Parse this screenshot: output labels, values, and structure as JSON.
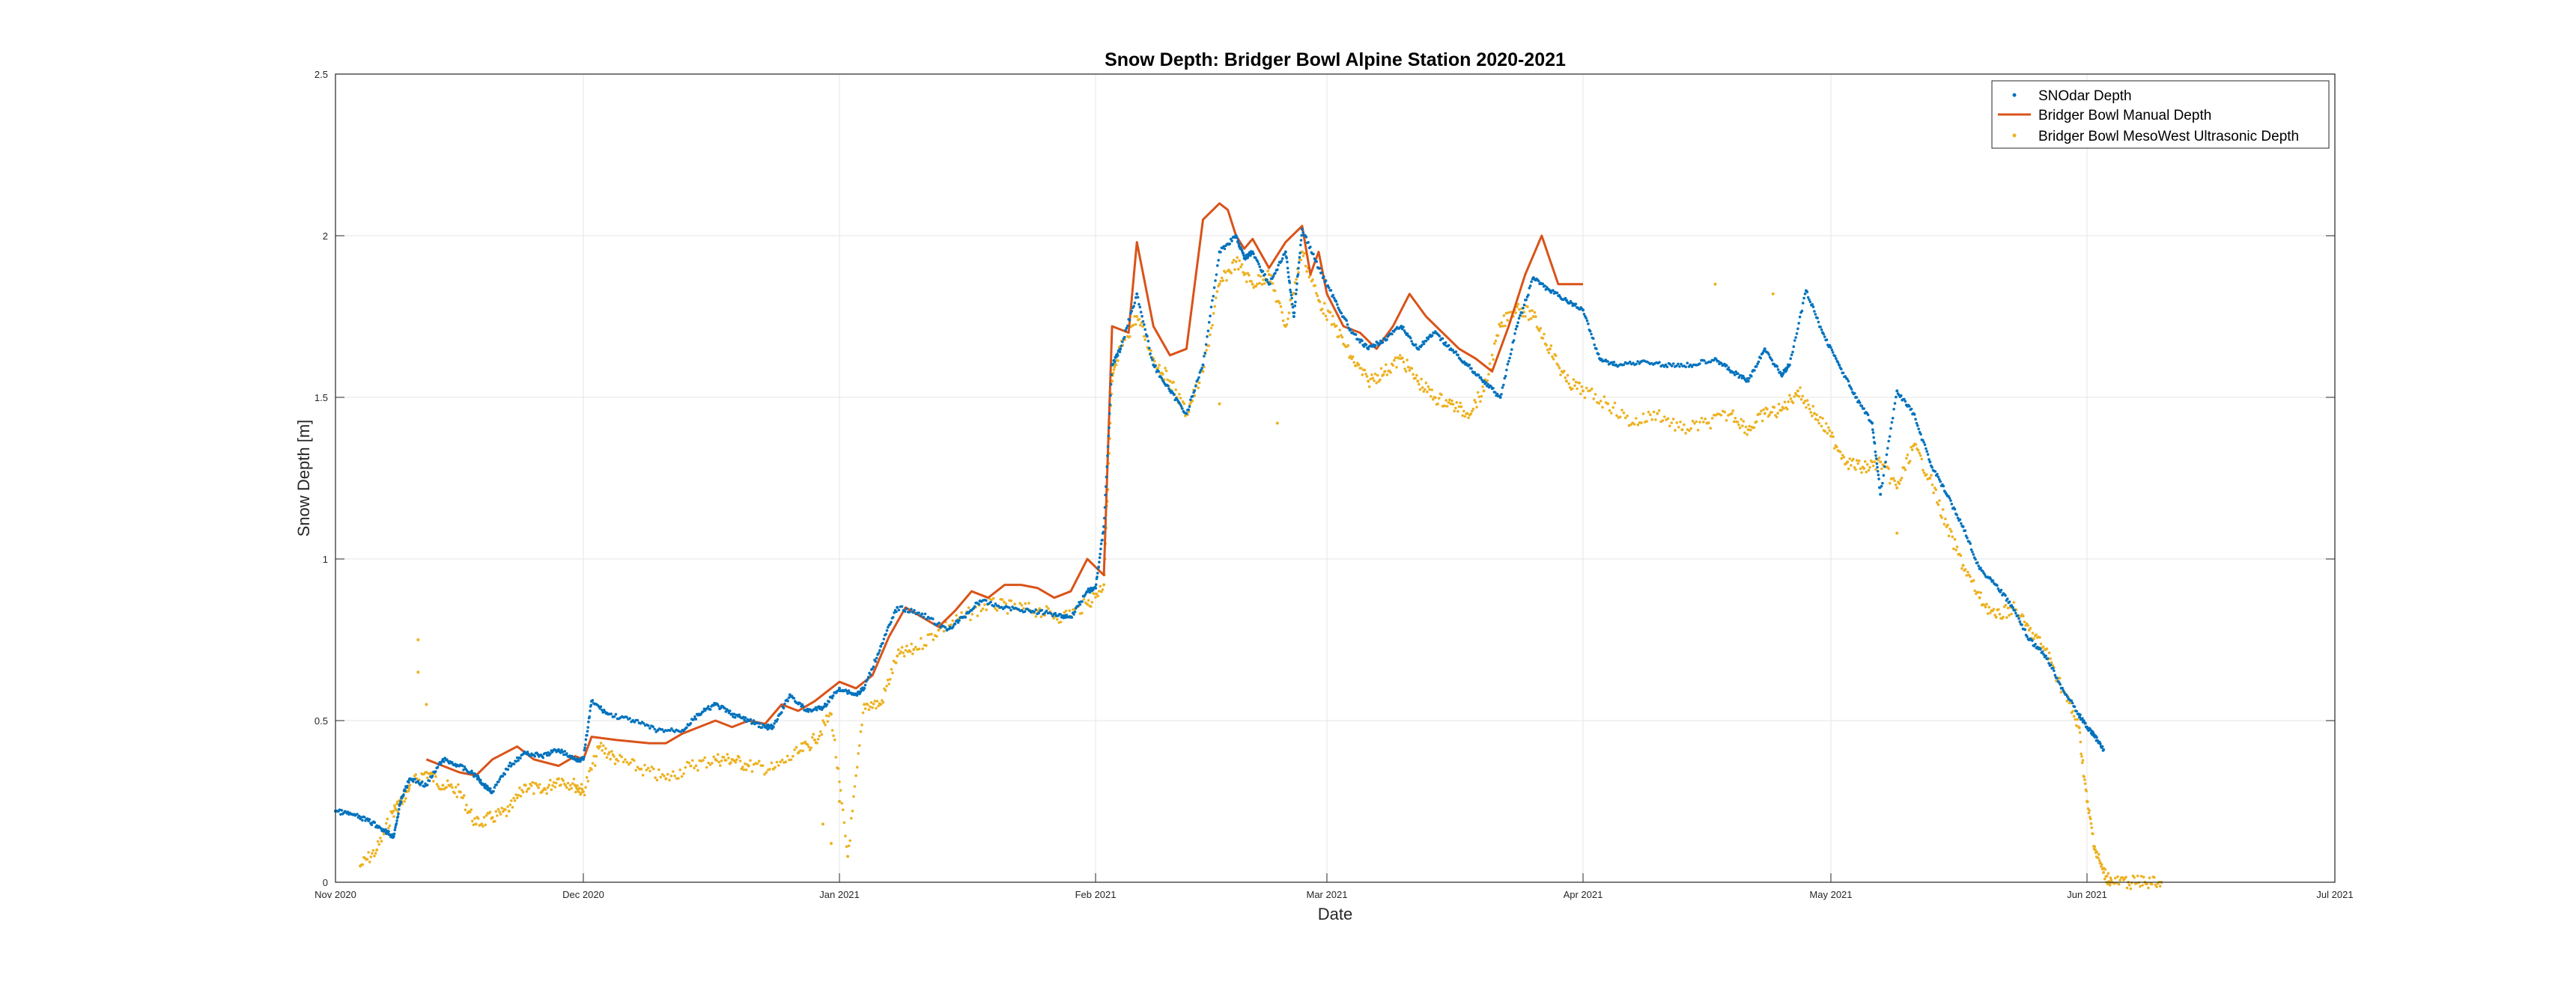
{
  "colors": {
    "snodar": "#0072bd",
    "manual": "#d95319",
    "mesowest": "#edb120",
    "grid": "#e6e6e6",
    "axis": "#262626"
  },
  "chart_data": {
    "type": "line",
    "title": "Snow Depth: Bridger Bowl Alpine Station 2020-2021",
    "xlabel": "Date",
    "ylabel": "Snow Depth [m]",
    "xlim": [
      "2020-11-01",
      "2021-07-01"
    ],
    "ylim": [
      0,
      2.5
    ],
    "grid": true,
    "legend_position": "top-right",
    "x_ticks": [
      {
        "date": "2020-11-01",
        "label": "Nov 2020"
      },
      {
        "date": "2020-12-01",
        "label": "Dec 2020"
      },
      {
        "date": "2021-01-01",
        "label": "Jan 2021"
      },
      {
        "date": "2021-02-01",
        "label": "Feb 2021"
      },
      {
        "date": "2021-03-01",
        "label": "Mar 2021"
      },
      {
        "date": "2021-04-01",
        "label": "Apr 2021"
      },
      {
        "date": "2021-05-01",
        "label": "May 2021"
      },
      {
        "date": "2021-06-01",
        "label": "Jun 2021"
      },
      {
        "date": "2021-07-01",
        "label": "Jul 2021"
      }
    ],
    "y_ticks": [
      0,
      0.5,
      1,
      1.5,
      2,
      2.5
    ],
    "y_tick_labels": [
      "0",
      "0.5",
      "1",
      "1.5",
      "2",
      "2.5"
    ],
    "series": [
      {
        "name": "SNOdar Depth",
        "style": "points",
        "color": "#0072bd",
        "x": [
          "2020-11-01",
          "2020-11-03",
          "2020-11-05",
          "2020-11-07",
          "2020-11-08",
          "2020-11-09",
          "2020-11-10",
          "2020-11-12",
          "2020-11-14",
          "2020-11-16",
          "2020-11-18",
          "2020-11-19",
          "2020-11-20",
          "2020-11-22",
          "2020-11-24",
          "2020-11-26",
          "2020-11-28",
          "2020-11-30",
          "2020-12-01",
          "2020-12-02",
          "2020-12-04",
          "2020-12-07",
          "2020-12-10",
          "2020-12-13",
          "2020-12-15",
          "2020-12-17",
          "2020-12-19",
          "2020-12-21",
          "2020-12-23",
          "2020-12-24",
          "2020-12-26",
          "2020-12-28",
          "2020-12-30",
          "2021-01-01",
          "2021-01-03",
          "2021-01-04",
          "2021-01-06",
          "2021-01-08",
          "2021-01-11",
          "2021-01-14",
          "2021-01-16",
          "2021-01-18",
          "2021-01-21",
          "2021-01-24",
          "2021-01-27",
          "2021-01-29",
          "2021-01-31",
          "2021-02-01",
          "2021-02-02",
          "2021-02-03",
          "2021-02-04",
          "2021-02-06",
          "2021-02-08",
          "2021-02-10",
          "2021-02-12",
          "2021-02-14",
          "2021-02-16",
          "2021-02-18",
          "2021-02-19",
          "2021-02-20",
          "2021-02-22",
          "2021-02-24",
          "2021-02-25",
          "2021-02-26",
          "2021-02-28",
          "2021-03-02",
          "2021-03-04",
          "2021-03-06",
          "2021-03-08",
          "2021-03-10",
          "2021-03-12",
          "2021-03-14",
          "2021-03-16",
          "2021-03-18",
          "2021-03-20",
          "2021-03-22",
          "2021-03-24",
          "2021-03-26",
          "2021-03-28",
          "2021-03-30",
          "2021-04-01",
          "2021-04-03",
          "2021-04-05",
          "2021-04-08",
          "2021-04-11",
          "2021-04-14",
          "2021-04-17",
          "2021-04-19",
          "2021-04-21",
          "2021-04-23",
          "2021-04-25",
          "2021-04-26",
          "2021-04-28",
          "2021-04-30",
          "2021-05-02",
          "2021-05-04",
          "2021-05-06",
          "2021-05-07",
          "2021-05-09",
          "2021-05-11",
          "2021-05-13",
          "2021-05-15",
          "2021-05-17",
          "2021-05-19",
          "2021-05-21",
          "2021-05-23",
          "2021-05-25",
          "2021-05-27",
          "2021-05-29",
          "2021-05-31",
          "2021-06-01",
          "2021-06-02",
          "2021-06-03"
        ],
        "y": [
          0.22,
          0.21,
          0.19,
          0.16,
          0.14,
          0.26,
          0.32,
          0.3,
          0.38,
          0.36,
          0.33,
          0.3,
          0.28,
          0.36,
          0.4,
          0.39,
          0.41,
          0.38,
          0.38,
          0.56,
          0.52,
          0.5,
          0.47,
          0.47,
          0.52,
          0.55,
          0.52,
          0.5,
          0.48,
          0.48,
          0.58,
          0.53,
          0.54,
          0.6,
          0.58,
          0.6,
          0.73,
          0.85,
          0.83,
          0.78,
          0.82,
          0.87,
          0.85,
          0.84,
          0.83,
          0.82,
          0.9,
          0.91,
          1.1,
          1.6,
          1.65,
          1.82,
          1.6,
          1.52,
          1.45,
          1.6,
          1.95,
          2.0,
          1.93,
          1.95,
          1.85,
          1.95,
          1.75,
          2.02,
          1.9,
          1.8,
          1.7,
          1.65,
          1.68,
          1.72,
          1.65,
          1.7,
          1.65,
          1.6,
          1.55,
          1.5,
          1.72,
          1.87,
          1.83,
          1.8,
          1.77,
          1.62,
          1.6,
          1.61,
          1.6,
          1.6,
          1.62,
          1.58,
          1.55,
          1.65,
          1.57,
          1.6,
          1.83,
          1.7,
          1.6,
          1.5,
          1.42,
          1.2,
          1.52,
          1.45,
          1.3,
          1.2,
          1.1,
          0.97,
          0.92,
          0.85,
          0.75,
          0.7,
          0.6,
          0.52,
          0.48,
          0.45,
          0.41
        ]
      },
      {
        "name": "Bridger Bowl Manual Depth",
        "style": "line",
        "color": "#d95319",
        "x": [
          "2020-11-12",
          "2020-11-14",
          "2020-11-16",
          "2020-11-18",
          "2020-11-20",
          "2020-11-23",
          "2020-11-25",
          "2020-11-28",
          "2020-11-30",
          "2020-12-01",
          "2020-12-02",
          "2020-12-05",
          "2020-12-09",
          "2020-12-11",
          "2020-12-13",
          "2020-12-15",
          "2020-12-17",
          "2020-12-19",
          "2020-12-21",
          "2020-12-23",
          "2020-12-25",
          "2020-12-27",
          "2020-12-29",
          "2021-01-01",
          "2021-01-03",
          "2021-01-05",
          "2021-01-07",
          "2021-01-09",
          "2021-01-11",
          "2021-01-13",
          "2021-01-15",
          "2021-01-17",
          "2021-01-19",
          "2021-01-21",
          "2021-01-23",
          "2021-01-25",
          "2021-01-27",
          "2021-01-29",
          "2021-01-31",
          "2021-02-02",
          "2021-02-03",
          "2021-02-05",
          "2021-02-06",
          "2021-02-08",
          "2021-02-10",
          "2021-02-12",
          "2021-02-14",
          "2021-02-16",
          "2021-02-17",
          "2021-02-18",
          "2021-02-19",
          "2021-02-20",
          "2021-02-22",
          "2021-02-24",
          "2021-02-26",
          "2021-02-27",
          "2021-02-28",
          "2021-03-01",
          "2021-03-03",
          "2021-03-05",
          "2021-03-07",
          "2021-03-09",
          "2021-03-11",
          "2021-03-13",
          "2021-03-15",
          "2021-03-17",
          "2021-03-19",
          "2021-03-21",
          "2021-03-23",
          "2021-03-25",
          "2021-03-27",
          "2021-03-29",
          "2021-04-01"
        ],
        "y": [
          0.38,
          0.36,
          0.34,
          0.33,
          0.38,
          0.42,
          0.38,
          0.36,
          0.39,
          0.38,
          0.45,
          0.44,
          0.43,
          0.43,
          0.46,
          0.48,
          0.5,
          0.48,
          0.5,
          0.49,
          0.55,
          0.53,
          0.56,
          0.62,
          0.6,
          0.64,
          0.76,
          0.85,
          0.82,
          0.79,
          0.84,
          0.9,
          0.88,
          0.92,
          0.92,
          0.91,
          0.88,
          0.9,
          1.0,
          0.95,
          1.72,
          1.7,
          1.98,
          1.72,
          1.63,
          1.65,
          2.05,
          2.1,
          2.08,
          2.0,
          1.96,
          1.99,
          1.9,
          1.98,
          2.03,
          1.88,
          1.95,
          1.82,
          1.72,
          1.7,
          1.65,
          1.72,
          1.82,
          1.75,
          1.7,
          1.65,
          1.62,
          1.58,
          1.72,
          1.88,
          2.0,
          1.85,
          1.85
        ]
      },
      {
        "name": "Bridger Bowl MesoWest Ultrasonic Depth",
        "style": "points",
        "color": "#edb120",
        "x": [
          "2020-11-04",
          "2020-11-06",
          "2020-11-08",
          "2020-11-09",
          "2020-11-10",
          "2020-11-12",
          "2020-11-14",
          "2020-11-16",
          "2020-11-18",
          "2020-11-20",
          "2020-11-22",
          "2020-11-24",
          "2020-11-26",
          "2020-11-28",
          "2020-11-30",
          "2020-12-01",
          "2020-12-03",
          "2020-12-05",
          "2020-12-08",
          "2020-12-11",
          "2020-12-14",
          "2020-12-17",
          "2020-12-19",
          "2020-12-21",
          "2020-12-24",
          "2020-12-27",
          "2020-12-29",
          "2020-12-31",
          "2021-01-02",
          "2021-01-04",
          "2021-01-06",
          "2021-01-08",
          "2021-01-10",
          "2021-01-13",
          "2021-01-16",
          "2021-01-19",
          "2021-01-22",
          "2021-01-25",
          "2021-01-28",
          "2021-01-31",
          "2021-02-02",
          "2021-02-03",
          "2021-02-04",
          "2021-02-06",
          "2021-02-08",
          "2021-02-10",
          "2021-02-12",
          "2021-02-14",
          "2021-02-16",
          "2021-02-18",
          "2021-02-20",
          "2021-02-22",
          "2021-02-24",
          "2021-02-26",
          "2021-02-28",
          "2021-03-02",
          "2021-03-04",
          "2021-03-06",
          "2021-03-08",
          "2021-03-10",
          "2021-03-12",
          "2021-03-14",
          "2021-03-16",
          "2021-03-18",
          "2021-03-20",
          "2021-03-22",
          "2021-03-24",
          "2021-03-26",
          "2021-03-28",
          "2021-03-30",
          "2021-04-01",
          "2021-04-04",
          "2021-04-07",
          "2021-04-10",
          "2021-04-13",
          "2021-04-16",
          "2021-04-19",
          "2021-04-21",
          "2021-04-23",
          "2021-04-25",
          "2021-04-27",
          "2021-04-29",
          "2021-05-01",
          "2021-05-03",
          "2021-05-05",
          "2021-05-07",
          "2021-05-09",
          "2021-05-11",
          "2021-05-13",
          "2021-05-15",
          "2021-05-17",
          "2021-05-19",
          "2021-05-21",
          "2021-05-23",
          "2021-05-25",
          "2021-05-27",
          "2021-05-29",
          "2021-05-31",
          "2021-06-01",
          "2021-06-02",
          "2021-06-03",
          "2021-06-04",
          "2021-06-06",
          "2021-06-08",
          "2021-06-10"
        ],
        "y": [
          0.05,
          0.1,
          0.22,
          0.25,
          0.3,
          0.34,
          0.3,
          0.28,
          0.18,
          0.2,
          0.22,
          0.3,
          0.28,
          0.32,
          0.3,
          0.28,
          0.42,
          0.38,
          0.35,
          0.32,
          0.36,
          0.38,
          0.38,
          0.36,
          0.35,
          0.4,
          0.44,
          0.52,
          0.08,
          0.55,
          0.55,
          0.7,
          0.72,
          0.78,
          0.82,
          0.86,
          0.85,
          0.84,
          0.82,
          0.86,
          0.92,
          1.55,
          1.65,
          1.75,
          1.62,
          1.55,
          1.45,
          1.58,
          1.85,
          1.92,
          1.85,
          1.88,
          1.72,
          1.95,
          1.8,
          1.72,
          1.62,
          1.55,
          1.58,
          1.62,
          1.55,
          1.5,
          1.48,
          1.45,
          1.52,
          1.72,
          1.78,
          1.75,
          1.65,
          1.55,
          1.52,
          1.48,
          1.42,
          1.45,
          1.4,
          1.42,
          1.45,
          1.4,
          1.45,
          1.46,
          1.52,
          1.45,
          1.38,
          1.3,
          1.28,
          1.3,
          1.22,
          1.35,
          1.25,
          1.1,
          0.98,
          0.88,
          0.82,
          0.85,
          0.78,
          0.72,
          0.6,
          0.48,
          0.25,
          0.1,
          0.03,
          0.0,
          0.0,
          0.0,
          0.0
        ]
      },
      {
        "name": "",
        "style": "points",
        "color": "#edb120",
        "role": "outliers",
        "x": [
          "2020-11-11",
          "2020-11-11",
          "2020-11-12",
          "2020-12-30",
          "2020-12-31",
          "2021-01-01",
          "2021-04-17",
          "2021-04-24",
          "2021-02-16",
          "2021-02-23",
          "2021-05-09"
        ],
        "y": [
          0.75,
          0.65,
          0.55,
          0.18,
          0.12,
          0.25,
          1.85,
          1.82,
          1.48,
          1.42,
          1.08
        ]
      }
    ]
  }
}
